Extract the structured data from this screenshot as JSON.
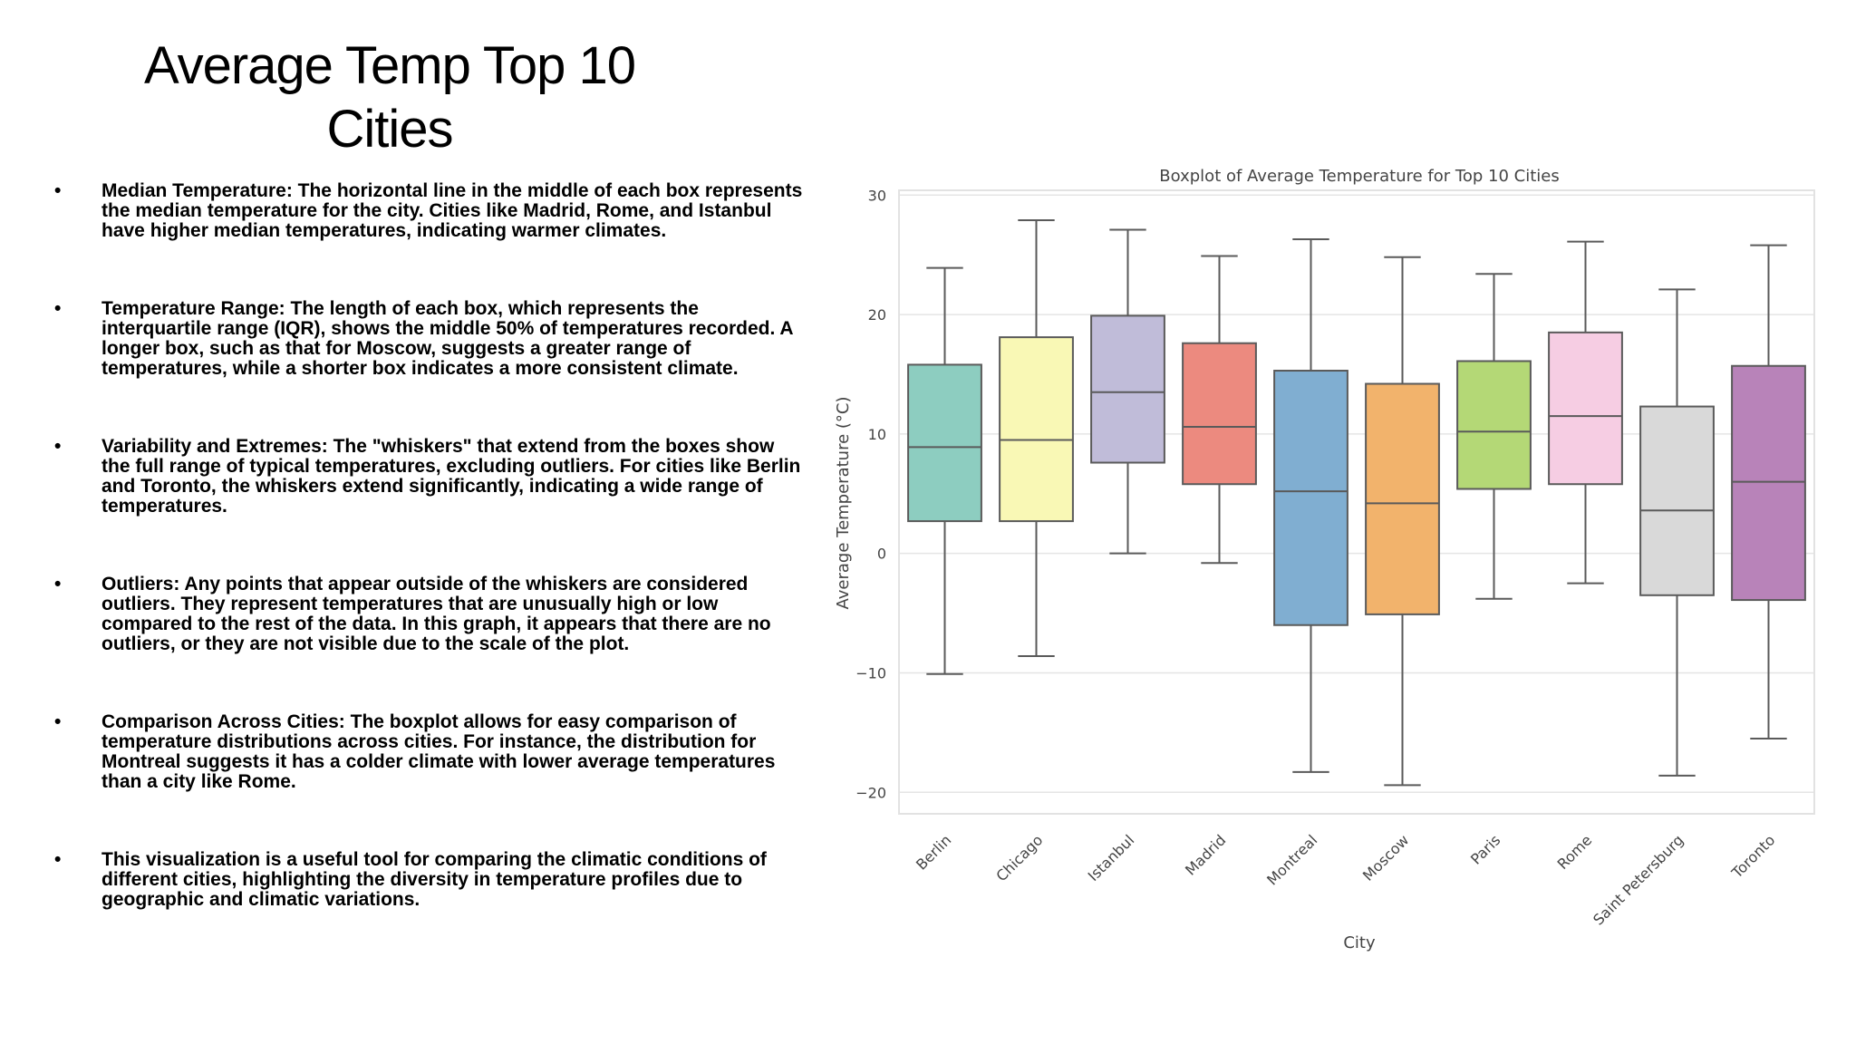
{
  "slide": {
    "title_line1": "Average Temp Top 10",
    "title_line2": "Cities",
    "bullet_symbol": "•",
    "bullets": [
      "Median Temperature: The horizontal line in the middle of each box represents the median temperature for the city. Cities like Madrid, Rome, and Istanbul have higher median temperatures, indicating warmer climates.",
      "Temperature Range: The length of each box, which represents the interquartile range (IQR), shows the middle 50% of temperatures recorded. A longer box, such as that for Moscow, suggests a greater range of temperatures, while a shorter box indicates a more consistent climate.",
      "Variability and Extremes: The \"whiskers\" that extend from the boxes show the full range of typical temperatures, excluding outliers. For cities like Berlin and Toronto, the whiskers extend significantly, indicating a wide range of temperatures.",
      "Outliers: Any points that appear outside of the whiskers are considered outliers. They represent temperatures that are unusually high or low compared to the rest of the data. In this graph, it appears that there are no outliers, or they are not visible due to the scale of the plot.",
      "Comparison Across Cities: The boxplot allows for easy comparison of temperature distributions across cities. For instance, the distribution for Montreal suggests it has a colder climate with lower average temperatures than a city like Rome.",
      "This visualization is a useful tool for comparing the climatic conditions of different cities, highlighting the diversity in temperature profiles due to geographic and climatic variations."
    ]
  },
  "chart_data": {
    "type": "boxplot",
    "title": "Boxplot of Average Temperature for Top 10 Cities",
    "xlabel": "City",
    "ylabel": "Average Temperature (°C)",
    "ylim": [
      -21.8,
      30.4
    ],
    "yticks": [
      30,
      20,
      10,
      0,
      -10,
      -20
    ],
    "ytick_labels": [
      "30",
      "20",
      "10",
      "0",
      "−10",
      "−20"
    ],
    "grid": true,
    "categories": [
      "Berlin",
      "Chicago",
      "Istanbul",
      "Madrid",
      "Montreal",
      "Moscow",
      "Paris",
      "Rome",
      "Saint Petersburg",
      "Toronto"
    ],
    "boxes": [
      {
        "city": "Berlin",
        "min": -10.1,
        "q1": 2.7,
        "median": 8.9,
        "q3": 15.8,
        "max": 23.9,
        "color": "#8dcdc0"
      },
      {
        "city": "Chicago",
        "min": -8.6,
        "q1": 2.7,
        "median": 9.5,
        "q3": 18.1,
        "max": 27.9,
        "color": "#f9f8b5"
      },
      {
        "city": "Istanbul",
        "min": 0.0,
        "q1": 7.6,
        "median": 13.5,
        "q3": 19.9,
        "max": 27.1,
        "color": "#c0bcd9"
      },
      {
        "city": "Madrid",
        "min": -0.8,
        "q1": 5.8,
        "median": 10.6,
        "q3": 17.6,
        "max": 24.9,
        "color": "#ec8a7f"
      },
      {
        "city": "Montreal",
        "min": -18.3,
        "q1": -6.0,
        "median": 5.2,
        "q3": 15.3,
        "max": 26.3,
        "color": "#80aed1"
      },
      {
        "city": "Moscow",
        "min": -19.4,
        "q1": -5.1,
        "median": 4.2,
        "q3": 14.2,
        "max": 24.8,
        "color": "#f2b36c"
      },
      {
        "city": "Paris",
        "min": -3.8,
        "q1": 5.4,
        "median": 10.2,
        "q3": 16.1,
        "max": 23.4,
        "color": "#b4d876"
      },
      {
        "city": "Rome",
        "min": -2.5,
        "q1": 5.8,
        "median": 11.5,
        "q3": 18.5,
        "max": 26.1,
        "color": "#f6cde3"
      },
      {
        "city": "Saint Petersburg",
        "min": -18.6,
        "q1": -3.5,
        "median": 3.6,
        "q3": 12.3,
        "max": 22.1,
        "color": "#d9d9d9"
      },
      {
        "city": "Toronto",
        "min": -15.5,
        "q1": -3.9,
        "median": 6.0,
        "q3": 15.7,
        "max": 25.8,
        "color": "#b883b9"
      }
    ],
    "line_color": "#5a5a5a",
    "grid_color": "#e5e5e5"
  }
}
